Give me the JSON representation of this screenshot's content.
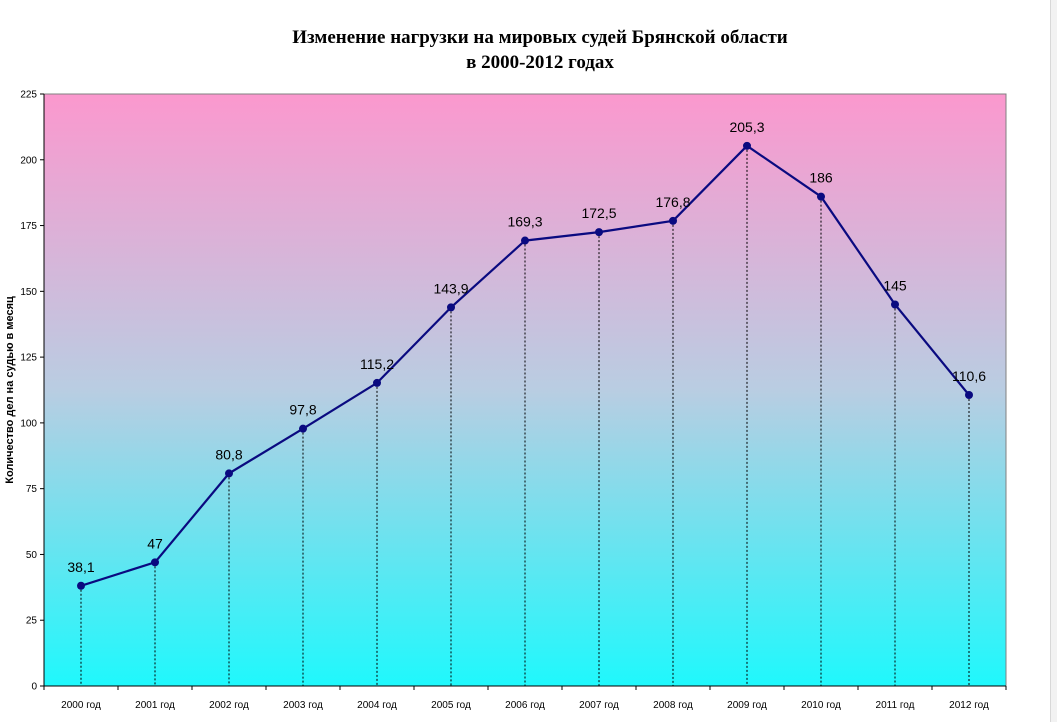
{
  "chart_data": {
    "type": "line",
    "title_line1": "Изменение нагрузки на мировых судей Брянской области",
    "title_line2": "в 2000-2012 годах",
    "ylabel": "Количество дел на судью в месяц",
    "xlabel": "",
    "ylim": [
      0,
      225
    ],
    "yticks": [
      "0",
      "25",
      "50",
      "75",
      "100",
      "125",
      "150",
      "175",
      "200",
      "225"
    ],
    "categories": [
      "2000 год",
      "2001 год",
      "2002 год",
      "2003 год",
      "2004 год",
      "2005 год",
      "2006 год",
      "2007 год",
      "2008 год",
      "2009 год",
      "2010 год",
      "2011 год",
      "2012 год"
    ],
    "values": [
      38.1,
      47,
      80.8,
      97.8,
      115.2,
      143.9,
      169.3,
      172.5,
      176.8,
      205.3,
      186,
      145,
      110.6
    ],
    "data_labels": [
      "38,1",
      "47",
      "80,8",
      "97,8",
      "115,2",
      "143,9",
      "169,3",
      "172,5",
      "176,8",
      "205,3",
      "186",
      "145",
      "110,6"
    ],
    "grid": false,
    "drop_lines": true,
    "legend": "none",
    "colors": {
      "line": "#0a0a80",
      "marker": "#0a0a80",
      "gradient_top": "#fb98ce",
      "gradient_mid": "#b9cde2",
      "gradient_bottom": "#1ff8fc"
    }
  }
}
